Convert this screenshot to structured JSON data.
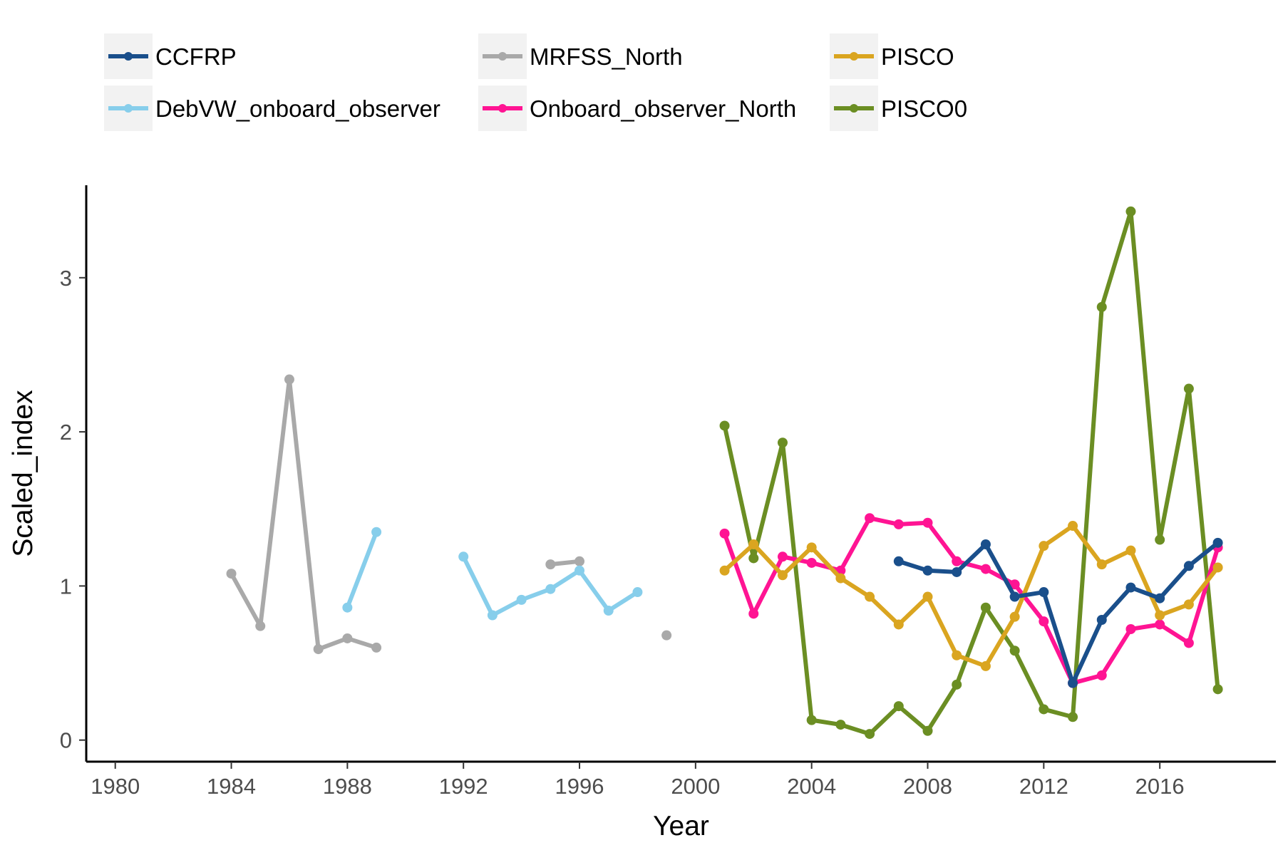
{
  "chart_data": {
    "type": "line",
    "xlabel": "Year",
    "ylabel": "Scaled_index",
    "xlim": [
      1979,
      2020
    ],
    "ylim": [
      -0.14,
      3.6
    ],
    "x_ticks": [
      1980,
      1984,
      1988,
      1992,
      1996,
      2000,
      2004,
      2008,
      2012,
      2016
    ],
    "y_ticks": [
      0,
      1,
      2,
      3
    ],
    "grid": false,
    "legend_position": "top",
    "series": [
      {
        "name": "CCFRP",
        "color": "#1a4f8b",
        "points": [
          [
            2007,
            1.16
          ],
          [
            2008,
            1.1
          ],
          [
            2009,
            1.09
          ],
          [
            2010,
            1.27
          ],
          [
            2011,
            0.93
          ],
          [
            2012,
            0.96
          ],
          [
            2013,
            0.37
          ],
          [
            2014,
            0.78
          ],
          [
            2015,
            0.99
          ],
          [
            2016,
            0.92
          ],
          [
            2017,
            1.13
          ],
          [
            2018,
            1.28
          ]
        ]
      },
      {
        "name": "DebVW_onboard_observer",
        "color": "#87ceeb",
        "points": [
          [
            1988,
            0.86
          ],
          [
            1989,
            1.35
          ],
          [
            1990,
            null
          ],
          [
            1991,
            null
          ],
          [
            1992,
            1.19
          ],
          [
            1993,
            0.81
          ],
          [
            1994,
            0.91
          ],
          [
            1995,
            0.98
          ],
          [
            1996,
            1.1
          ],
          [
            1997,
            0.84
          ],
          [
            1998,
            0.96
          ]
        ]
      },
      {
        "name": "MRFSS_North",
        "color": "#a9a9a9",
        "points": [
          [
            1984,
            1.08
          ],
          [
            1985,
            0.74
          ],
          [
            1986,
            2.34
          ],
          [
            1987,
            0.59
          ],
          [
            1988,
            0.66
          ],
          [
            1989,
            0.6
          ],
          [
            1990,
            null
          ],
          [
            1991,
            null
          ],
          [
            1992,
            null
          ],
          [
            1993,
            null
          ],
          [
            1994,
            null
          ],
          [
            1995,
            1.14
          ],
          [
            1996,
            1.16
          ],
          [
            1997,
            null
          ],
          [
            1998,
            null
          ],
          [
            1999,
            0.68
          ]
        ]
      },
      {
        "name": "Onboard_observer_North",
        "color": "#ff1493",
        "points": [
          [
            2001,
            1.34
          ],
          [
            2002,
            0.82
          ],
          [
            2003,
            1.19
          ],
          [
            2004,
            1.15
          ],
          [
            2005,
            1.1
          ],
          [
            2006,
            1.44
          ],
          [
            2007,
            1.4
          ],
          [
            2008,
            1.41
          ],
          [
            2009,
            1.16
          ],
          [
            2010,
            1.11
          ],
          [
            2011,
            1.01
          ],
          [
            2012,
            0.77
          ],
          [
            2013,
            0.37
          ],
          [
            2014,
            0.42
          ],
          [
            2015,
            0.72
          ],
          [
            2016,
            0.75
          ],
          [
            2017,
            0.63
          ],
          [
            2018,
            1.25
          ]
        ]
      },
      {
        "name": "PISCO",
        "color": "#daa520",
        "points": [
          [
            2001,
            1.1
          ],
          [
            2002,
            1.27
          ],
          [
            2003,
            1.07
          ],
          [
            2004,
            1.25
          ],
          [
            2005,
            1.05
          ],
          [
            2006,
            0.93
          ],
          [
            2007,
            0.75
          ],
          [
            2008,
            0.93
          ],
          [
            2009,
            0.55
          ],
          [
            2010,
            0.48
          ],
          [
            2011,
            0.8
          ],
          [
            2012,
            1.26
          ],
          [
            2013,
            1.39
          ],
          [
            2014,
            1.14
          ],
          [
            2015,
            1.23
          ],
          [
            2016,
            0.81
          ],
          [
            2017,
            0.88
          ],
          [
            2018,
            1.12
          ]
        ]
      },
      {
        "name": "PISCO0",
        "color": "#6b8e23",
        "points": [
          [
            2001,
            2.04
          ],
          [
            2002,
            1.18
          ],
          [
            2003,
            1.93
          ],
          [
            2004,
            0.13
          ],
          [
            2005,
            0.1
          ],
          [
            2006,
            0.04
          ],
          [
            2007,
            0.22
          ],
          [
            2008,
            0.06
          ],
          [
            2009,
            0.36
          ],
          [
            2010,
            0.86
          ],
          [
            2011,
            0.58
          ],
          [
            2012,
            0.2
          ],
          [
            2013,
            0.15
          ],
          [
            2014,
            2.81
          ],
          [
            2015,
            3.43
          ],
          [
            2016,
            1.3
          ],
          [
            2017,
            2.28
          ],
          [
            2018,
            0.33
          ]
        ]
      }
    ]
  }
}
